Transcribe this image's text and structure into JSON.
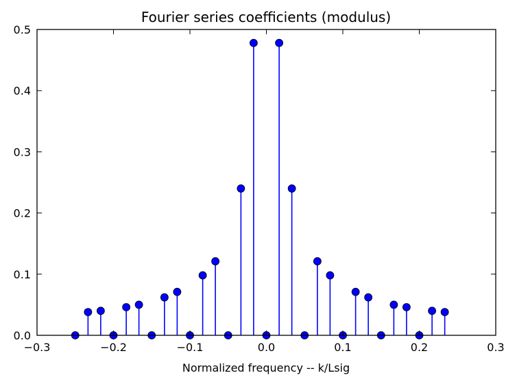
{
  "chart_data": {
    "type": "stem",
    "title": "Fourier series coefficients (modulus)",
    "xlabel": "Normalized frequency -- k/Lsig",
    "ylabel": "",
    "xlim": [
      -0.3,
      0.3
    ],
    "ylim": [
      0,
      0.5
    ],
    "xticks": [
      -0.3,
      -0.2,
      -0.1,
      0.0,
      0.1,
      0.2,
      0.3
    ],
    "xtick_labels": [
      "−0.3",
      "−0.2",
      "−0.1",
      "0.0",
      "0.1",
      "0.2",
      "0.3"
    ],
    "yticks": [
      0.0,
      0.1,
      0.2,
      0.3,
      0.4,
      0.5
    ],
    "ytick_labels": [
      "0.0",
      "0.1",
      "0.2",
      "0.3",
      "0.4",
      "0.5"
    ],
    "grid": false,
    "color": "#0000ff",
    "x": [
      -0.25,
      -0.2333,
      -0.2167,
      -0.2,
      -0.1833,
      -0.1667,
      -0.15,
      -0.1333,
      -0.1167,
      -0.1,
      -0.0833,
      -0.0667,
      -0.05,
      -0.0333,
      -0.0167,
      0.0,
      0.0167,
      0.0333,
      0.05,
      0.0667,
      0.0833,
      0.1,
      0.1167,
      0.1333,
      0.15,
      0.1667,
      0.1833,
      0.2,
      0.2167,
      0.2333
    ],
    "y": [
      0.0,
      0.038,
      0.04,
      0.0,
      0.046,
      0.05,
      0.0,
      0.062,
      0.071,
      0.0,
      0.098,
      0.121,
      0.0,
      0.24,
      0.478,
      0.0,
      0.478,
      0.24,
      0.0,
      0.121,
      0.098,
      0.0,
      0.071,
      0.062,
      0.0,
      0.05,
      0.046,
      0.0,
      0.04,
      0.038
    ]
  }
}
